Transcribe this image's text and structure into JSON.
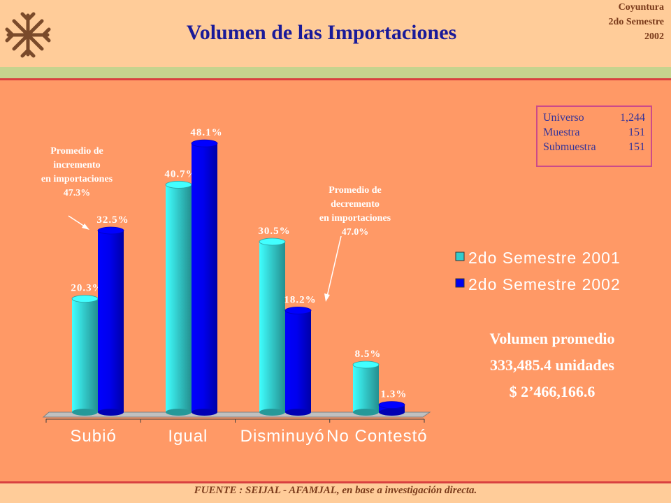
{
  "header": {
    "title": "Volumen de las Importaciones",
    "corner_lines": [
      "Coyuntura",
      "2do Semestre",
      "2002"
    ]
  },
  "sample": {
    "rows": [
      {
        "label": "Universo",
        "value": "1,244"
      },
      {
        "label": "Muestra",
        "value": "151"
      },
      {
        "label": "Submuestra",
        "value": "151"
      }
    ]
  },
  "annotations": {
    "increase": [
      "Promedio de",
      "incremento",
      "en importaciones",
      "47.3%"
    ],
    "decrease": [
      "Promedio de",
      "decremento",
      "en importaciones",
      "47.0%"
    ]
  },
  "volume": {
    "lines": [
      "Volumen promedio",
      "333,485.4 unidades",
      "$ 2’466,166.6"
    ]
  },
  "source": "FUENTE :  SEIJAL - AFAMJAL,  en base a investigación directa.",
  "colors": {
    "series_2001": "#33CCCC",
    "series_2002": "#0000EE",
    "panel": "#FF9966",
    "header": "#FFCC99",
    "title": "#1A1A99"
  },
  "chart_data": {
    "type": "bar",
    "categories": [
      "Subió",
      "Igual",
      "Disminuyó",
      "No Contestó"
    ],
    "series": [
      {
        "name": "2do Semestre 2001",
        "values": [
          20.3,
          40.7,
          30.5,
          8.5
        ],
        "labels": [
          "20.3%",
          "40.7%",
          "30.5%",
          "8.5%"
        ]
      },
      {
        "name": "2do Semestre 2002",
        "values": [
          32.5,
          48.1,
          18.2,
          1.3
        ],
        "labels": [
          "32.5%",
          "48.1%",
          "18.2%",
          "1.3%"
        ]
      }
    ],
    "ylim": [
      0,
      50
    ],
    "legend": "right",
    "grid": false
  }
}
